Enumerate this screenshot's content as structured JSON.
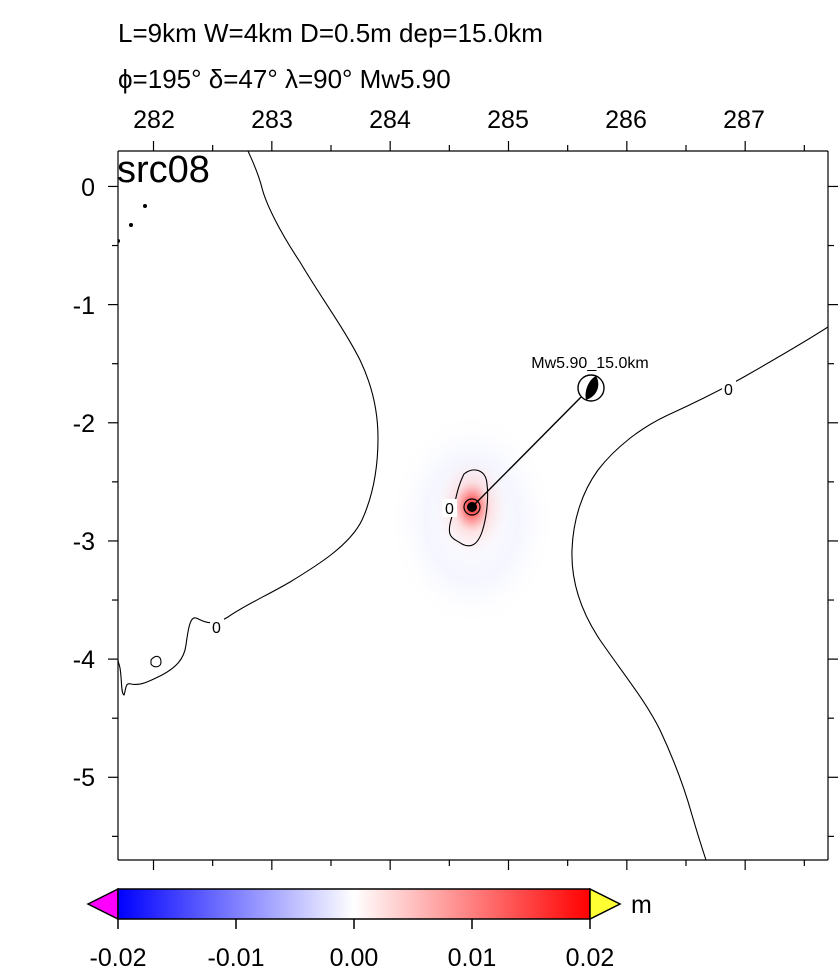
{
  "header": {
    "line1": "L=9km W=4km D=0.5m dep=15.0km",
    "line2": "ϕ=195° δ=47° λ=90° Mw5.90"
  },
  "map": {
    "source_label": "src08",
    "x_ticks": [
      "282",
      "283",
      "284",
      "285",
      "286",
      "287"
    ],
    "y_ticks": [
      "0",
      "-1",
      "-2",
      "-3",
      "-4",
      "-5"
    ],
    "x_range": [
      281.7,
      287.7
    ],
    "y_range": [
      -5.7,
      0.3
    ],
    "contour_level_label": "0",
    "mechanism": {
      "label": "Mw5.90_15.0km",
      "lon": 285.7,
      "lat": -1.7
    },
    "epicenter": {
      "lon": 284.7,
      "lat": -2.7
    },
    "colors": {
      "contour": "#000000",
      "positive": "#ff0000",
      "negative": "#0000ff",
      "high_overflow": "#ffff33",
      "low_overflow": "#ff00ff"
    }
  },
  "colorbar": {
    "unit": "m",
    "ticks": [
      "-0.02",
      "-0.01",
      "0.00",
      "0.01",
      "0.02"
    ],
    "range": [
      -0.02,
      0.02
    ]
  }
}
